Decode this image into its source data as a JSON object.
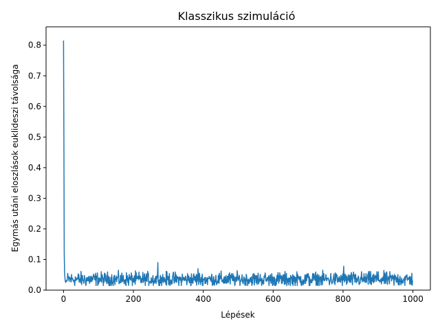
{
  "chart_data": {
    "type": "line",
    "title": "Klasszikus szimuláció",
    "xlabel": "Lépések",
    "ylabel": "Egymás utáni eloszlások euklideszi távolsága",
    "xlim": [
      -50,
      1050
    ],
    "ylim": [
      0,
      0.86
    ],
    "xticks": [
      0,
      200,
      400,
      600,
      800,
      1000
    ],
    "xtick_labels": [
      "0",
      "200",
      "400",
      "600",
      "800",
      "1000"
    ],
    "yticks": [
      0.0,
      0.1,
      0.2,
      0.3,
      0.4,
      0.5,
      0.6,
      0.7,
      0.8
    ],
    "ytick_labels": [
      "0.0",
      "0.1",
      "0.2",
      "0.3",
      "0.4",
      "0.5",
      "0.6",
      "0.7",
      "0.8"
    ],
    "grid": false,
    "series": [
      {
        "color": "#1f77b4",
        "x_range": [
          0,
          999
        ],
        "head": [
          [
            0,
            0.815
          ],
          [
            1,
            0.5
          ],
          [
            2,
            0.12
          ],
          [
            3,
            0.06
          ],
          [
            4,
            0.04
          ],
          [
            5,
            0.03
          ],
          [
            6,
            0.025
          ],
          [
            7,
            0.03
          ],
          [
            8,
            0.028
          ],
          [
            9,
            0.032
          ],
          [
            10,
            0.03
          ]
        ],
        "baseline_mean": 0.035,
        "baseline_range": [
          0.015,
          0.065
        ],
        "spikes": [
          [
            268,
            0.04
          ],
          [
            270,
            0.09
          ],
          [
            272,
            0.03
          ],
          [
            385,
            0.07
          ],
          [
            802,
            0.078
          ],
          [
            897,
            0.06
          ]
        ]
      }
    ]
  }
}
